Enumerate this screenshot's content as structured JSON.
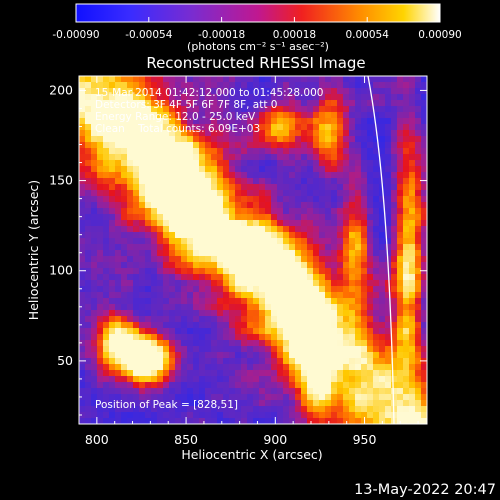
{
  "chart_data": {
    "type": "heatmap",
    "title": "Reconstructed RHESSI Image",
    "xlabel": "Heliocentric X (arcsec)",
    "ylabel": "Heliocentric Y (arcsec)",
    "x_range": [
      790,
      985
    ],
    "y_range": [
      15,
      208
    ],
    "x_ticks": [
      800,
      850,
      900,
      950
    ],
    "y_ticks": [
      50,
      100,
      150,
      200
    ],
    "colorbar": {
      "range": [
        -0.0009,
        0.0009
      ],
      "tick_values": [
        -0.0009,
        -0.00054,
        -0.00018,
        0.00018,
        0.00054,
        0.0009
      ],
      "tick_labels": [
        "-0.00090",
        "-0.00054",
        "-0.00018",
        "0.00018",
        "0.00054",
        "0.00090"
      ],
      "units_label": "(photons cm⁻² s⁻¹ asec⁻²)"
    },
    "annotations": [
      "15-Mar-2014 01:42:12.000 to 01:45:28.000",
      "Detectors: 3F 4F 5F 6F 7F 8F, att 0",
      "Energy Range: 12.0 - 25.0 keV",
      "Clean    Total counts: 6.09E+03"
    ],
    "peak_label": "Position of Peak = [828,51]",
    "peak_position": [
      828,
      51
    ],
    "grid": false
  },
  "footer": {
    "timestamp": "13-May-2022 20:47"
  },
  "colors": {
    "background": "#000000",
    "limb_line": "#ffffff"
  }
}
